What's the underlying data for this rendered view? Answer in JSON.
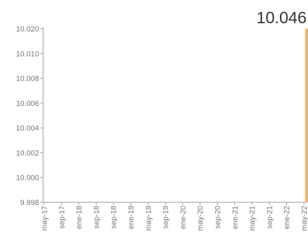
{
  "chart_data": {
    "type": "bar",
    "value_label": "10.046",
    "x_tick_labels": [
      "may-17",
      "sep-17",
      "ene-18",
      "sep-18",
      "sep-18",
      "ene-19",
      "may-19",
      "sep-19",
      "ene-20",
      "may-20",
      "sep-20",
      "ene-21",
      "may-21",
      "sep-21",
      "ene-22",
      "may-22"
    ],
    "y_tick_labels": [
      "10.020",
      "10.010",
      "10.008",
      "10.006",
      "10.004",
      "10.002",
      "10.000",
      "9.998"
    ],
    "ylim": [
      9.998,
      10.02
    ],
    "grid": false,
    "bar": {
      "x": "may-22",
      "value": 10.046
    },
    "colors": {
      "bar": "#F4B266",
      "axis": "#9a9a9a",
      "tick_text": "#777777",
      "value_text": "#333333"
    }
  }
}
